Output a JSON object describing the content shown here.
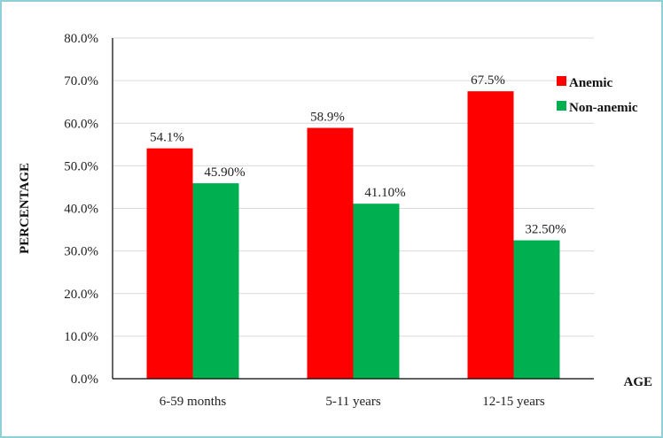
{
  "chart_data": {
    "type": "bar",
    "title": "",
    "xlabel": "AGE",
    "ylabel": "PERCENTAGE",
    "ylim": [
      0,
      80
    ],
    "ytick_step": 10,
    "ytick_labels": [
      "0.0%",
      "10.0%",
      "20.0%",
      "30.0%",
      "40.0%",
      "50.0%",
      "60.0%",
      "70.0%",
      "80.0%"
    ],
    "grid": true,
    "legend_position": "top-right",
    "categories": [
      "6-59 months",
      "5-11 years",
      "12-15 years"
    ],
    "series": [
      {
        "name": "Anemic",
        "color": "#ff0000",
        "values": [
          54.1,
          58.9,
          67.5
        ],
        "labels": [
          "54.1%",
          "58.9%",
          "67.5%"
        ]
      },
      {
        "name": "Non-anemic",
        "color": "#00b050",
        "values": [
          45.9,
          41.1,
          32.5
        ],
        "labels": [
          "45.90%",
          "41.10%",
          "32.50%"
        ]
      }
    ]
  }
}
